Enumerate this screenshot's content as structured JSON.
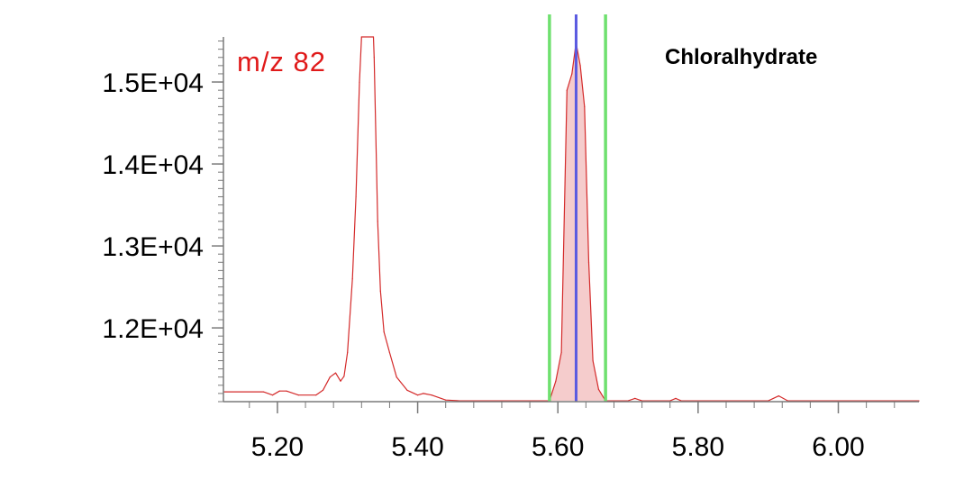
{
  "chart_data": {
    "type": "line",
    "annotation": "m/z 82",
    "compound": "Chloralhydrate",
    "xlim": [
      5.123,
      6.115
    ],
    "ylim": [
      11100,
      15550
    ],
    "x_ticks": [
      5.2,
      5.4,
      5.6,
      5.8,
      6.0
    ],
    "x_tick_labels": [
      "5.20",
      "5.40",
      "5.60",
      "5.80",
      "6.00"
    ],
    "y_ticks": [
      12000,
      13000,
      14000,
      15000
    ],
    "y_tick_labels": [
      "1.2E+04",
      "1.3E+04",
      "1.4E+04",
      "1.5E+04"
    ],
    "integration_window": {
      "start": 5.588,
      "end": 5.668,
      "apex": 5.626
    },
    "series": [
      {
        "values": [
          [
            5.123,
            11220
          ],
          [
            5.18,
            11220
          ],
          [
            5.193,
            11180
          ],
          [
            5.203,
            11230
          ],
          [
            5.213,
            11230
          ],
          [
            5.23,
            11180
          ],
          [
            5.255,
            11180
          ],
          [
            5.265,
            11240
          ],
          [
            5.275,
            11400
          ],
          [
            5.283,
            11450
          ],
          [
            5.29,
            11350
          ],
          [
            5.295,
            11410
          ],
          [
            5.3,
            11700
          ],
          [
            5.307,
            12600
          ],
          [
            5.312,
            13600
          ],
          [
            5.317,
            15000
          ],
          [
            5.32,
            15550
          ],
          [
            5.337,
            15550
          ],
          [
            5.338,
            15300
          ],
          [
            5.343,
            13300
          ],
          [
            5.347,
            12450
          ],
          [
            5.352,
            11950
          ],
          [
            5.36,
            11700
          ],
          [
            5.37,
            11400
          ],
          [
            5.385,
            11240
          ],
          [
            5.4,
            11180
          ],
          [
            5.408,
            11200
          ],
          [
            5.42,
            11180
          ],
          [
            5.44,
            11120
          ],
          [
            5.46,
            11110
          ],
          [
            5.588,
            11110
          ],
          [
            5.597,
            11350
          ],
          [
            5.605,
            11700
          ],
          [
            5.613,
            14900
          ],
          [
            5.62,
            15100
          ],
          [
            5.626,
            15480
          ],
          [
            5.632,
            15200
          ],
          [
            5.638,
            14700
          ],
          [
            5.644,
            12800
          ],
          [
            5.65,
            11600
          ],
          [
            5.658,
            11250
          ],
          [
            5.668,
            11110
          ],
          [
            5.7,
            11110
          ],
          [
            5.71,
            11140
          ],
          [
            5.72,
            11110
          ],
          [
            5.76,
            11110
          ],
          [
            5.768,
            11140
          ],
          [
            5.776,
            11110
          ],
          [
            5.9,
            11110
          ],
          [
            5.915,
            11170
          ],
          [
            5.928,
            11110
          ],
          [
            6.115,
            11110
          ]
        ]
      }
    ],
    "grid": false,
    "colors": {
      "trace": "#d42a2a",
      "peak_fill": "#f5cccc",
      "window_lines": "#6fe06f",
      "apex_line": "#5a5ae0",
      "annotation": "#e01a1a",
      "axis": "#7a7a7a"
    }
  }
}
